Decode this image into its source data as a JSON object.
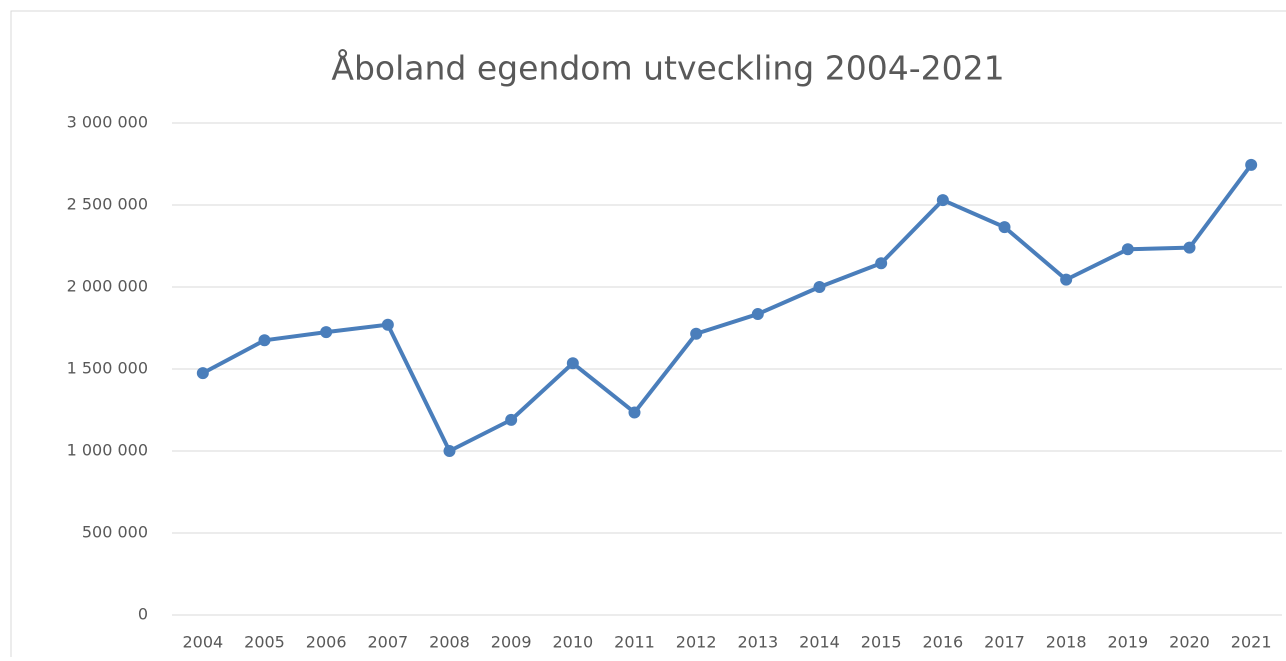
{
  "chart_data": {
    "type": "line",
    "title": "Åboland egendom utveckling 2004-2021",
    "categories": [
      "2004",
      "2005",
      "2006",
      "2007",
      "2008",
      "2009",
      "2010",
      "2011",
      "2012",
      "2013",
      "2014",
      "2015",
      "2016",
      "2017",
      "2018",
      "2019",
      "2020",
      "2021"
    ],
    "series": [
      {
        "name": "Åboland egendom",
        "color": "#4a7ebb",
        "values": [
          1475000,
          1675000,
          1725000,
          1770000,
          1000000,
          1190000,
          1535000,
          1235000,
          1715000,
          1835000,
          2000000,
          2145000,
          2530000,
          2365000,
          2045000,
          2230000,
          2240000,
          2745000
        ]
      }
    ],
    "ylim": [
      0,
      3000000
    ],
    "yticks": [
      0,
      {
        "value": 500000,
        "label": "500 000"
      },
      {
        "value": 1000000,
        "label": "1 000 000"
      },
      {
        "value": 1500000,
        "label": "1 500 000"
      },
      {
        "value": 2000000,
        "label": "2 000 000"
      },
      {
        "value": 2500000,
        "label": "2 500 000"
      },
      {
        "value": 3000000,
        "label": "3 000 000"
      }
    ],
    "grid": true
  }
}
